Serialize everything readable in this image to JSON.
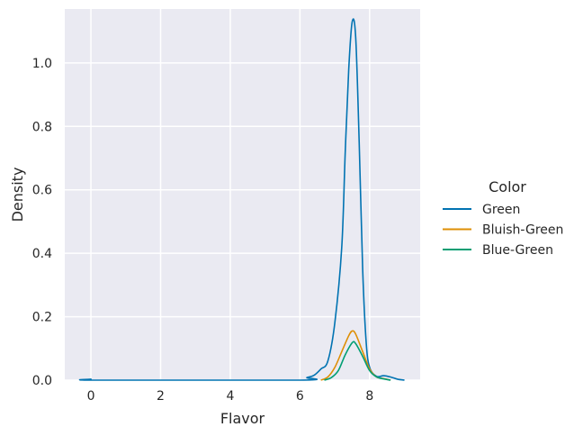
{
  "chart_data": {
    "type": "line",
    "xlabel": "Flavor",
    "ylabel": "Density",
    "xlim": [
      -0.75,
      9.45
    ],
    "ylim": [
      0.0,
      1.17
    ],
    "x_ticks": [
      0,
      2,
      4,
      6,
      8
    ],
    "x_tick_labels": [
      "0",
      "2",
      "4",
      "6",
      "8"
    ],
    "y_ticks": [
      0.0,
      0.2,
      0.4,
      0.6,
      0.8,
      1.0
    ],
    "y_tick_labels": [
      "0.0",
      "0.2",
      "0.4",
      "0.6",
      "0.8",
      "1.0"
    ],
    "grid": true,
    "legend": {
      "title": "Color",
      "placement": "right-outside"
    },
    "series": [
      {
        "name": "Green",
        "color": "#0173b2",
        "points": [
          [
            -0.15,
            0.0
          ],
          [
            0.0,
            0.003
          ],
          [
            0.15,
            0.0
          ],
          [
            6.0,
            0.0
          ],
          [
            6.2,
            0.008
          ],
          [
            6.4,
            0.015
          ],
          [
            6.6,
            0.035
          ],
          [
            6.8,
            0.06
          ],
          [
            7.0,
            0.18
          ],
          [
            7.2,
            0.42
          ],
          [
            7.3,
            0.72
          ],
          [
            7.4,
            0.98
          ],
          [
            7.5,
            1.13
          ],
          [
            7.6,
            1.08
          ],
          [
            7.7,
            0.75
          ],
          [
            7.8,
            0.35
          ],
          [
            7.9,
            0.12
          ],
          [
            8.0,
            0.04
          ],
          [
            8.2,
            0.012
          ],
          [
            8.4,
            0.014
          ],
          [
            8.6,
            0.01
          ],
          [
            8.8,
            0.003
          ],
          [
            9.0,
            0.0
          ]
        ]
      },
      {
        "name": "Bluish-Green",
        "color": "#de8f05",
        "points": [
          [
            6.6,
            0.0
          ],
          [
            6.8,
            0.01
          ],
          [
            7.0,
            0.04
          ],
          [
            7.2,
            0.09
          ],
          [
            7.4,
            0.14
          ],
          [
            7.5,
            0.155
          ],
          [
            7.6,
            0.145
          ],
          [
            7.8,
            0.09
          ],
          [
            8.0,
            0.035
          ],
          [
            8.2,
            0.01
          ],
          [
            8.4,
            0.005
          ],
          [
            8.6,
            0.0
          ]
        ]
      },
      {
        "name": "Blue-Green",
        "color": "#029e73",
        "points": [
          [
            6.7,
            0.0
          ],
          [
            6.9,
            0.008
          ],
          [
            7.1,
            0.03
          ],
          [
            7.3,
            0.08
          ],
          [
            7.5,
            0.118
          ],
          [
            7.6,
            0.115
          ],
          [
            7.8,
            0.075
          ],
          [
            8.0,
            0.03
          ],
          [
            8.2,
            0.01
          ],
          [
            8.4,
            0.004
          ],
          [
            8.6,
            0.0
          ]
        ]
      }
    ]
  }
}
